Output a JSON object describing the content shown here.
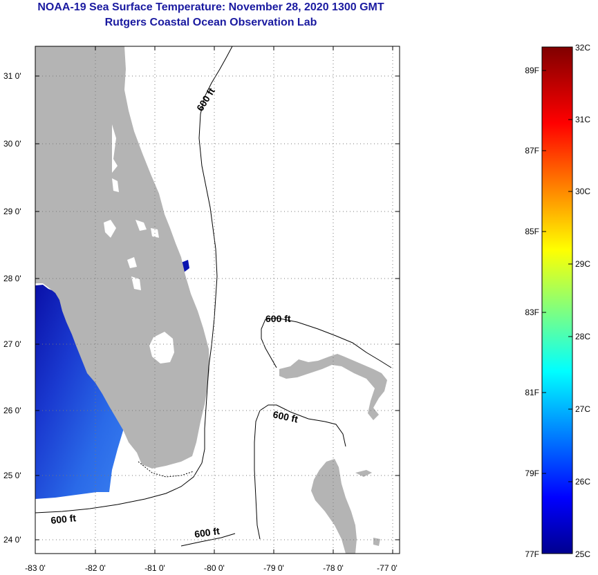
{
  "title": {
    "line1": "NOAA-19 Sea Surface Temperature:  November 28, 2020 1300 GMT",
    "line2": "Rutgers Coastal Ocean Observation Lab"
  },
  "axes": {
    "lat_ticks": [
      "31 0'",
      "30 0'",
      "29 0'",
      "28 0'",
      "27 0'",
      "26 0'",
      "25 0'",
      "24 0'"
    ],
    "lon_ticks": [
      "-83 0'",
      "-82 0'",
      "-81 0'",
      "-80 0'",
      "-79 0'",
      "-78 0'",
      "-77 0'"
    ]
  },
  "contours": {
    "label_600_a": "600 ft",
    "label_600_b": "600 ft",
    "label_600_c": "600 ft",
    "label_600_d": "600 ft",
    "label_600_e": "600 ft"
  },
  "colorbar": {
    "celsius": [
      "32C",
      "31C",
      "30C",
      "29C",
      "28C",
      "27C",
      "26C",
      "25C"
    ],
    "fahrenheit": [
      "89F",
      "87F",
      "85F",
      "83F",
      "81F",
      "79F",
      "77F"
    ]
  },
  "colors": {
    "land": "#b4b4b4",
    "title": "#1a1aa0",
    "sst_deep": "#1020c0"
  }
}
